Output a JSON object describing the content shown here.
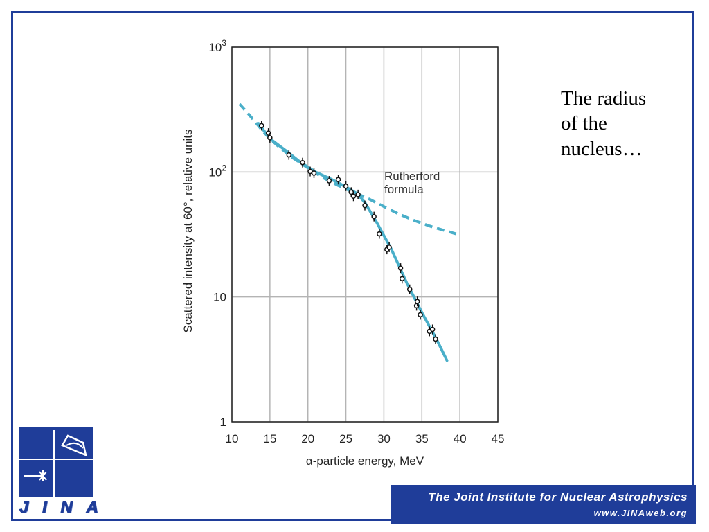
{
  "side_text": "The radius\nof the\nnucleus…",
  "banner": {
    "title": "The Joint Institute for Nuclear Astrophysics",
    "url": "www.JINAweb.org"
  },
  "logo": {
    "letters": [
      "J",
      "I",
      "N",
      "A"
    ],
    "icon": "jina-logo-icon"
  },
  "colors": {
    "frame": "#1f3d99",
    "curve": "#4aafc9",
    "grid": "#b4b4b4",
    "banner": "#1f3d99"
  },
  "chart_data": {
    "type": "scatter",
    "xlabel": "α-particle energy, MeV",
    "ylabel": "Scattered intensity at 60°, relative units",
    "xlim": [
      10,
      45
    ],
    "ylim": [
      1,
      1000
    ],
    "yscale": "log",
    "grid": true,
    "xticks": [
      "10",
      "15",
      "20",
      "25",
      "30",
      "35",
      "40",
      "45"
    ],
    "yticks": [
      {
        "value": 1,
        "base": "1",
        "exp": ""
      },
      {
        "value": 10,
        "base": "10",
        "exp": ""
      },
      {
        "value": 100,
        "base": "10",
        "exp": "2"
      },
      {
        "value": 1000,
        "base": "10",
        "exp": "3"
      }
    ],
    "annotation": [
      "Rutherford",
      "formula"
    ],
    "series": [
      {
        "style": "points-with-error-bars",
        "x": [
          13.9,
          14.8,
          15.0,
          17.5,
          19.3,
          20.3,
          20.8,
          22.8,
          24.0,
          25.0,
          25.7,
          26.0,
          26.6,
          27.5,
          28.7,
          29.4,
          30.4,
          30.7,
          32.2,
          32.4,
          33.4,
          34.3,
          34.4,
          34.8,
          36.0,
          36.4,
          36.8
        ],
        "y": [
          235,
          205,
          188,
          137,
          119,
          101,
          98,
          85,
          87,
          77,
          69,
          64,
          66,
          54,
          44,
          32,
          24,
          25,
          17,
          14,
          11.5,
          8.5,
          9.2,
          7.2,
          5.3,
          5.5,
          4.6
        ]
      },
      {
        "style": "solid-fit",
        "x": [
          13.5,
          15,
          17,
          19,
          21,
          23,
          25,
          26.5,
          27.5,
          29,
          31,
          33,
          35,
          37,
          38.3
        ],
        "y": [
          245,
          185,
          150,
          120,
          100,
          88,
          76,
          67,
          57,
          40,
          24,
          13,
          7.5,
          4.5,
          3.1
        ]
      },
      {
        "name": "Rutherford formula",
        "style": "dashed",
        "x": [
          11,
          12,
          13,
          14,
          15,
          16,
          18,
          20,
          22,
          24,
          26,
          28,
          30,
          32,
          34,
          36,
          38,
          39.5
        ],
        "y": [
          350,
          300,
          255,
          215,
          185,
          163,
          130,
          108,
          90,
          78,
          69,
          61,
          53,
          46,
          41,
          37,
          34,
          32
        ]
      }
    ]
  }
}
